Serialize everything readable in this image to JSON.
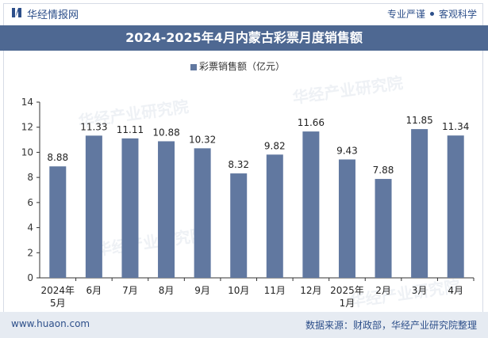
{
  "header": {
    "brand": "华经情报网",
    "slogan_left": "专业严谨",
    "slogan_right": "客观科学"
  },
  "watermark": "华经产业研究院",
  "footer": {
    "url": "www.huaon.com",
    "source": "数据来源：财政部，华经产业研究院整理"
  },
  "colors": {
    "bar": "#6178a0",
    "title_bg": "#4e6892",
    "brand": "#2d4f8a"
  },
  "chart_data": {
    "type": "bar",
    "title": "2024-2025年4月内蒙古彩票月度销售额",
    "legend": "彩票销售额（亿元）",
    "categories": [
      [
        "2024年",
        "5月"
      ],
      [
        "6月"
      ],
      [
        "7月"
      ],
      [
        "8月"
      ],
      [
        "9月"
      ],
      [
        "10月"
      ],
      [
        "11月"
      ],
      [
        "12月"
      ],
      [
        "2025年",
        "1月"
      ],
      [
        "2月"
      ],
      [
        "3月"
      ],
      [
        "4月"
      ]
    ],
    "values": [
      8.88,
      11.33,
      11.11,
      10.88,
      10.32,
      8.32,
      9.82,
      11.66,
      9.43,
      7.88,
      11.85,
      11.34
    ],
    "ylim": [
      0,
      14
    ],
    "yticks": [
      0,
      2,
      4,
      6,
      8,
      10,
      12,
      14
    ],
    "grid": false,
    "legend_position": "top-center"
  }
}
